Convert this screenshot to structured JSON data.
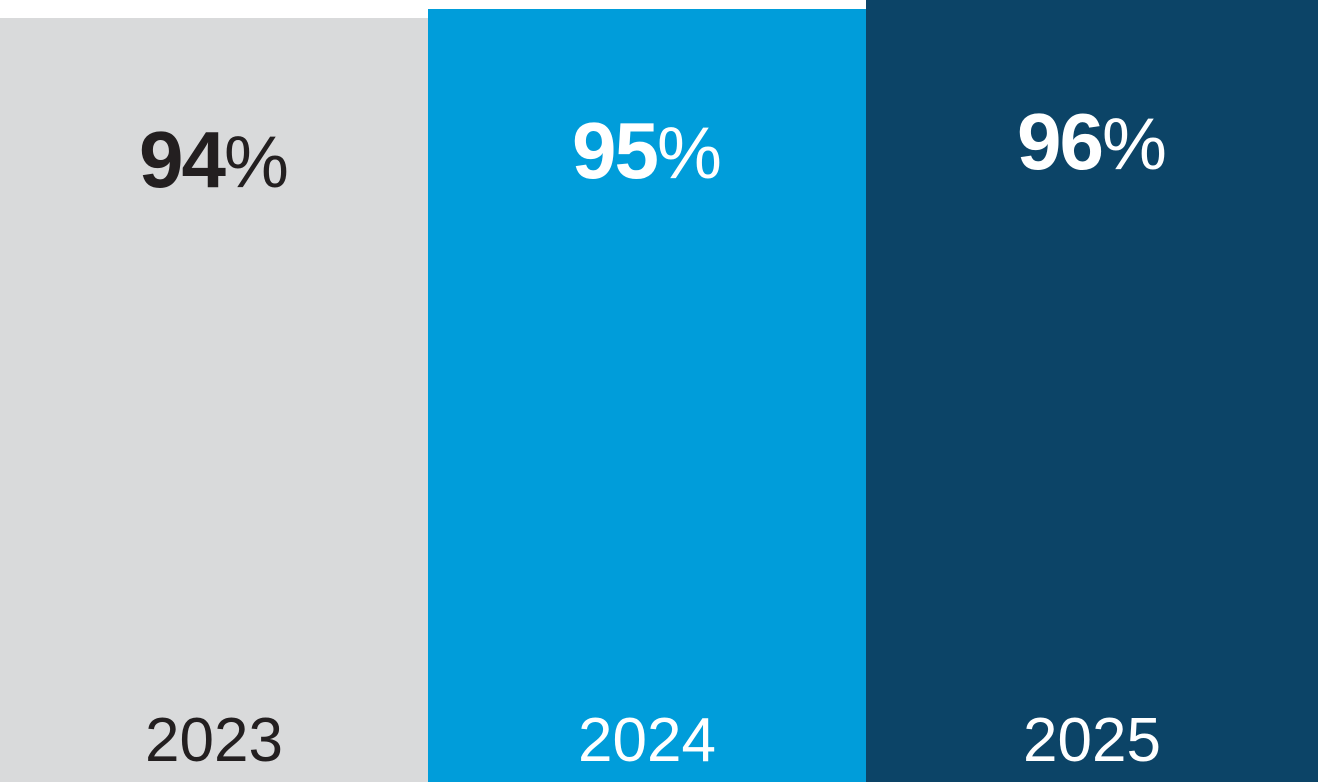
{
  "chart_data": {
    "type": "bar",
    "categories": [
      "2023",
      "2024",
      "2025"
    ],
    "values": [
      94,
      95,
      96
    ],
    "value_labels": [
      "94%",
      "95%",
      "96%"
    ],
    "unit": "%",
    "title": "",
    "xlabel": "",
    "ylabel": "",
    "legend": "none",
    "grid": false,
    "layout": "three adjacent full-bleed vertical bars, bottom-aligned, height increasing with value, value label near top of each bar, year label at bottom of each bar",
    "bar_colors": [
      "#d9dadb",
      "#009dda",
      "#0c4467"
    ],
    "label_colors": [
      "#231f20",
      "#ffffff",
      "#ffffff"
    ],
    "background_color": "#ffffff"
  },
  "bars": [
    {
      "year": "2023",
      "value": "94",
      "unit": "%",
      "color": "#d9dadb",
      "text_color": "#231f20"
    },
    {
      "year": "2024",
      "value": "95",
      "unit": "%",
      "color": "#009dda",
      "text_color": "#ffffff"
    },
    {
      "year": "2025",
      "value": "96",
      "unit": "%",
      "color": "#0c4467",
      "text_color": "#ffffff"
    }
  ]
}
